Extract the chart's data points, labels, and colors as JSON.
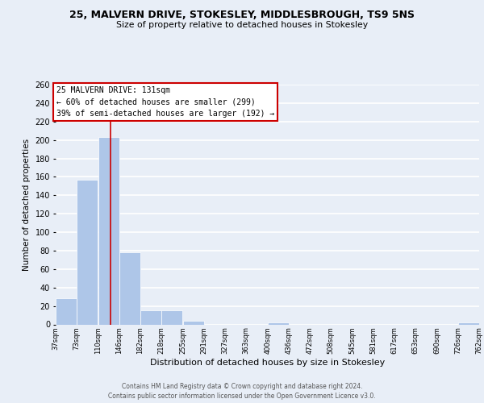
{
  "title": "25, MALVERN DRIVE, STOKESLEY, MIDDLESBROUGH, TS9 5NS",
  "subtitle": "Size of property relative to detached houses in Stokesley",
  "xlabel": "Distribution of detached houses by size in Stokesley",
  "ylabel": "Number of detached properties",
  "bar_edges": [
    37,
    73,
    110,
    146,
    182,
    218,
    255,
    291,
    327,
    363,
    400,
    436,
    472,
    508,
    545,
    581,
    617,
    653,
    690,
    726,
    762
  ],
  "bar_heights": [
    28,
    157,
    203,
    78,
    15,
    15,
    4,
    0,
    0,
    0,
    2,
    0,
    0,
    0,
    0,
    0,
    0,
    0,
    0,
    2
  ],
  "bar_color": "#aec6e8",
  "property_line_x": 131,
  "property_line_color": "#cc0000",
  "annotation_title": "25 MALVERN DRIVE: 131sqm",
  "annotation_line1": "← 60% of detached houses are smaller (299)",
  "annotation_line2": "39% of semi-detached houses are larger (192) →",
  "annotation_box_color": "#ffffff",
  "annotation_box_edgecolor": "#cc0000",
  "ylim": [
    0,
    260
  ],
  "yticks": [
    0,
    20,
    40,
    60,
    80,
    100,
    120,
    140,
    160,
    180,
    200,
    220,
    240,
    260
  ],
  "tick_labels": [
    "37sqm",
    "73sqm",
    "110sqm",
    "146sqm",
    "182sqm",
    "218sqm",
    "255sqm",
    "291sqm",
    "327sqm",
    "363sqm",
    "400sqm",
    "436sqm",
    "472sqm",
    "508sqm",
    "545sqm",
    "581sqm",
    "617sqm",
    "653sqm",
    "690sqm",
    "726sqm",
    "762sqm"
  ],
  "background_color": "#e8eef7",
  "grid_color": "#ffffff",
  "footer_line1": "Contains HM Land Registry data © Crown copyright and database right 2024.",
  "footer_line2": "Contains public sector information licensed under the Open Government Licence v3.0."
}
